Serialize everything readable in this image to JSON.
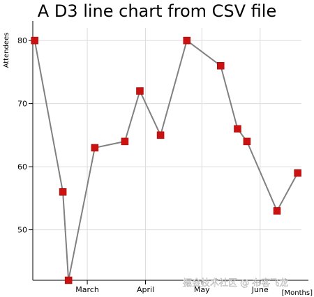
{
  "chart_data": {
    "type": "line",
    "title": "A D3 line chart from CSV file",
    "ylabel": "Attendees",
    "xlabel": "[Months]",
    "ylim": [
      42,
      82
    ],
    "x_ticks": [
      "March",
      "April",
      "May",
      "June"
    ],
    "x_tick_days": [
      46,
      77,
      107,
      138
    ],
    "x_range_days": [
      17,
      160
    ],
    "y_ticks": [
      50,
      60,
      70,
      80
    ],
    "grid": true,
    "line_color": "#808080",
    "marker_color": "#cc1111",
    "series": [
      {
        "points": [
          {
            "day": 18,
            "value": 80
          },
          {
            "day": 33,
            "value": 56
          },
          {
            "day": 36,
            "value": 42
          },
          {
            "day": 50,
            "value": 63
          },
          {
            "day": 66,
            "value": 64
          },
          {
            "day": 74,
            "value": 72
          },
          {
            "day": 85,
            "value": 65
          },
          {
            "day": 99,
            "value": 80
          },
          {
            "day": 117,
            "value": 76
          },
          {
            "day": 126,
            "value": 66
          },
          {
            "day": 131,
            "value": 64
          },
          {
            "day": 147,
            "value": 53
          },
          {
            "day": 158,
            "value": 59
          }
        ]
      }
    ]
  },
  "watermark": "掘金技术社区 @ 布客飞龙"
}
